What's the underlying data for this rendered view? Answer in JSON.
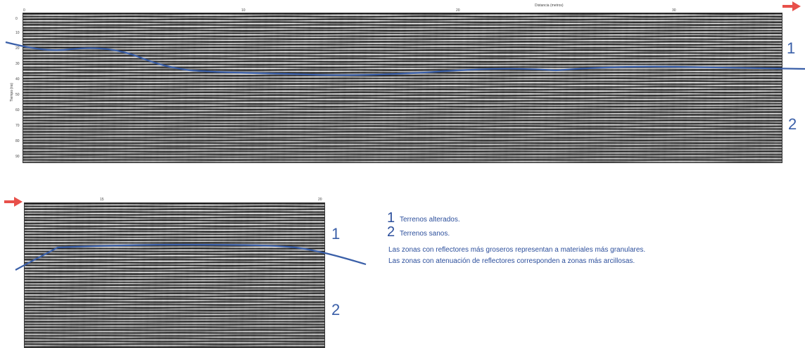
{
  "top_panel": {
    "axis_title": "Distancia (metros)",
    "top_ticks": [
      "0",
      "10",
      "20",
      "30"
    ],
    "depth_ticks": [
      "0",
      "10",
      "20",
      "30",
      "40",
      "50",
      "60",
      "70",
      "80",
      "90"
    ],
    "y_axis_label": "Tiempo (ns)",
    "zone_labels": [
      "1",
      "2"
    ]
  },
  "bottom_panel": {
    "top_ticks": [
      "15",
      "20"
    ],
    "zone_labels": [
      "1",
      "2"
    ]
  },
  "legend": {
    "items": [
      {
        "num": "1",
        "text": "Terrenos alterados."
      },
      {
        "num": "2",
        "text": "Terrenos sanos."
      }
    ],
    "notes": [
      "Las zonas con reflectores más groseros representan a materiales más granulares.",
      "Las zonas con atenuación de reflectores corresponden a zonas más arcillosas."
    ]
  },
  "colors": {
    "interface_line": "#3a5fa8",
    "arrow": "#e8504a",
    "legend_text": "#2c4f9c"
  },
  "icons": [
    "right-arrow-icon",
    "right-arrow-icon"
  ]
}
